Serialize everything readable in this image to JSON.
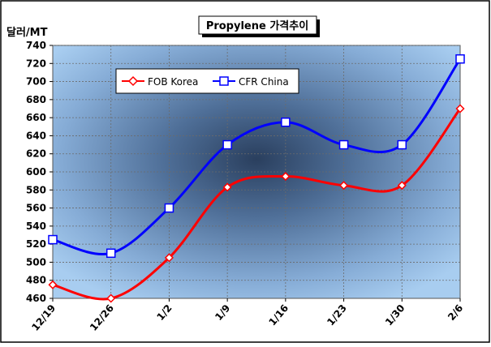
{
  "chart_data": {
    "type": "line",
    "title": "Propylene 가격추이",
    "ylabel": "달러/MT",
    "xlabel": "",
    "categories": [
      "12/19",
      "12/26",
      "1/2",
      "1/9",
      "1/16",
      "1/23",
      "1/30",
      "2/6"
    ],
    "ylim": [
      460,
      740
    ],
    "yticks": [
      460,
      480,
      500,
      520,
      540,
      560,
      580,
      600,
      620,
      640,
      660,
      680,
      700,
      720,
      740
    ],
    "grid": true,
    "legend_position": "top-left",
    "series": [
      {
        "name": "FOB Korea",
        "color": "#ff0000",
        "marker": "diamond",
        "values": [
          475,
          460,
          505,
          583,
          595,
          585,
          585,
          670
        ]
      },
      {
        "name": "CFR China",
        "color": "#0000ff",
        "marker": "square",
        "values": [
          525,
          510,
          560,
          630,
          655,
          630,
          630,
          725
        ]
      }
    ]
  }
}
